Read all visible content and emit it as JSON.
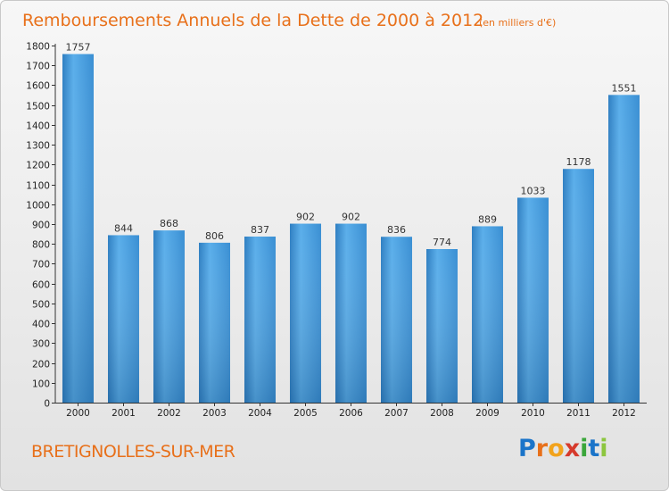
{
  "chart_data": {
    "type": "bar",
    "title": "Remboursements Annuels de la Dette de 2000 à 2012",
    "unit_note": "(en milliers d'€)",
    "categories": [
      "2000",
      "2001",
      "2002",
      "2003",
      "2004",
      "2005",
      "2006",
      "2007",
      "2008",
      "2009",
      "2010",
      "2011",
      "2012"
    ],
    "values": [
      1757,
      844,
      868,
      806,
      837,
      902,
      902,
      836,
      774,
      889,
      1033,
      1178,
      1551
    ],
    "ylim": [
      0,
      1800
    ],
    "yticks": [
      0,
      100,
      200,
      300,
      400,
      500,
      600,
      700,
      800,
      900,
      1000,
      1100,
      1200,
      1300,
      1400,
      1500,
      1600,
      1700,
      1800
    ],
    "xlabel": "",
    "ylabel": "",
    "bar_color": "#3e92d6",
    "grid": false
  },
  "footer": {
    "city": "BRETIGNOLLES-SUR-MER",
    "brand_letters": [
      "P",
      "r",
      "o",
      "x",
      "i",
      "t",
      "i"
    ],
    "brand_colors": [
      "#1a74c9",
      "#e8701a",
      "#f2a31c",
      "#d63a2c",
      "#3aa63a",
      "#1a74c9",
      "#8dc63f"
    ]
  },
  "colors": {
    "accent": "#e8701a",
    "bar": "#3e92d6"
  }
}
